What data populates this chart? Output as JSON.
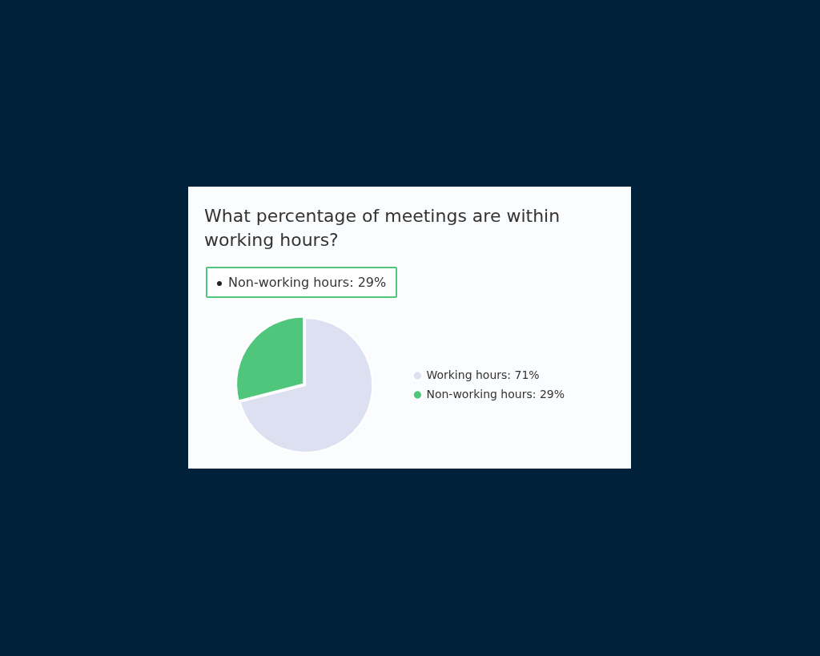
{
  "chart_data": {
    "type": "pie",
    "title": "What percentage of meetings are within working hours?",
    "categories": [
      "Working hours: 71%",
      "Non-working hours: 29%"
    ],
    "values": [
      71,
      29
    ],
    "colors": [
      "#dde0f1",
      "#4fc67c"
    ],
    "legend": "right",
    "annotations": [
      "Non-working hours: 29%"
    ]
  }
}
